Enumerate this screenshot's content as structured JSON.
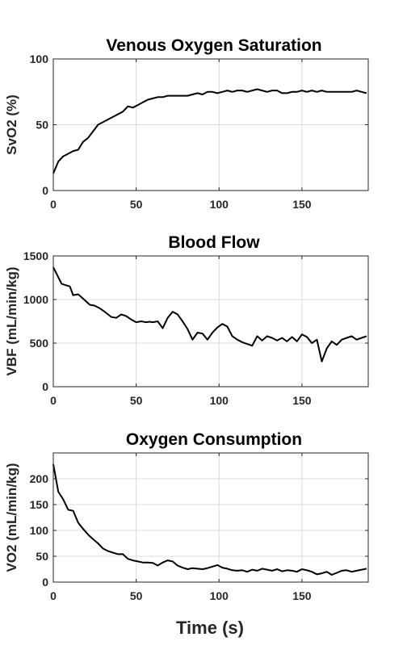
{
  "figure": {
    "xlabel": "Time (s)"
  },
  "chart_data": [
    {
      "type": "line",
      "title": "Venous Oxygen Saturation",
      "ylabel": "SvO2 (%)",
      "xlabel": "",
      "xlim": [
        0,
        190
      ],
      "ylim": [
        0,
        100
      ],
      "xticks": [
        0,
        50,
        100,
        150
      ],
      "yticks": [
        0,
        50,
        100
      ],
      "grid": true,
      "line_color": "#000000",
      "x": [
        0,
        3,
        6,
        9,
        12,
        15,
        18,
        21,
        24,
        27,
        30,
        33,
        36,
        39,
        42,
        45,
        48,
        51,
        54,
        57,
        60,
        63,
        66,
        69,
        72,
        75,
        78,
        81,
        84,
        87,
        90,
        93,
        96,
        99,
        102,
        105,
        108,
        111,
        114,
        117,
        120,
        123,
        126,
        129,
        132,
        135,
        138,
        141,
        144,
        147,
        150,
        153,
        156,
        159,
        162,
        165,
        168,
        171,
        174,
        177,
        180,
        183,
        186,
        189
      ],
      "y": [
        13,
        22,
        26,
        28,
        30,
        31,
        37,
        40,
        45,
        50,
        52,
        54,
        56,
        58,
        60,
        64,
        63,
        65,
        67,
        69,
        70,
        71,
        71,
        72,
        72,
        72,
        72,
        72,
        73,
        74,
        73,
        75,
        75,
        74,
        75,
        76,
        75,
        76,
        76,
        75,
        76,
        77,
        76,
        75,
        76,
        76,
        74,
        74,
        75,
        75,
        76,
        75,
        76,
        75,
        76,
        75,
        75,
        75,
        75,
        75,
        75,
        76,
        75,
        74
      ]
    },
    {
      "type": "line",
      "title": "Blood Flow",
      "ylabel": "VBF (mL/min/kg)",
      "xlabel": "",
      "xlim": [
        0,
        190
      ],
      "ylim": [
        0,
        1500
      ],
      "xticks": [
        0,
        50,
        100,
        150
      ],
      "yticks": [
        0,
        500,
        1000,
        1500
      ],
      "grid": true,
      "line_color": "#000000",
      "x": [
        0,
        5,
        10,
        12,
        15,
        18,
        22,
        25,
        28,
        31,
        35,
        38,
        41,
        44,
        47,
        50,
        53,
        56,
        58,
        60,
        63,
        66,
        69,
        72,
        75,
        78,
        81,
        84,
        87,
        90,
        93,
        96,
        99,
        102,
        105,
        108,
        111,
        114,
        117,
        120,
        123,
        126,
        129,
        132,
        135,
        138,
        141,
        144,
        147,
        150,
        153,
        156,
        159,
        162,
        165,
        168,
        171,
        174,
        177,
        180,
        183,
        186,
        189
      ],
      "y": [
        1370,
        1180,
        1150,
        1050,
        1060,
        1010,
        940,
        930,
        900,
        860,
        800,
        790,
        830,
        810,
        770,
        740,
        750,
        740,
        745,
        740,
        750,
        670,
        790,
        860,
        830,
        750,
        660,
        540,
        620,
        610,
        540,
        620,
        680,
        720,
        690,
        580,
        540,
        510,
        490,
        470,
        580,
        530,
        580,
        560,
        530,
        560,
        520,
        570,
        520,
        600,
        570,
        500,
        540,
        290,
        440,
        520,
        480,
        540,
        560,
        580,
        540,
        560,
        580
      ]
    },
    {
      "type": "line",
      "title": "Oxygen Consumption",
      "ylabel": "VO2 (mL/min/kg)",
      "xlabel": "Time (s)",
      "xlim": [
        0,
        190
      ],
      "ylim": [
        0,
        250
      ],
      "xticks": [
        0,
        50,
        100,
        150
      ],
      "yticks": [
        0,
        50,
        100,
        150,
        200
      ],
      "grid": true,
      "line_color": "#000000",
      "x": [
        0,
        3,
        6,
        9,
        12,
        15,
        18,
        21,
        24,
        27,
        30,
        33,
        36,
        39,
        42,
        45,
        48,
        51,
        54,
        57,
        60,
        63,
        66,
        69,
        72,
        75,
        78,
        81,
        84,
        87,
        90,
        93,
        96,
        99,
        102,
        105,
        108,
        111,
        114,
        117,
        120,
        123,
        126,
        129,
        132,
        135,
        138,
        141,
        144,
        147,
        150,
        153,
        156,
        159,
        162,
        165,
        168,
        171,
        174,
        177,
        180,
        183,
        186,
        189
      ],
      "y": [
        228,
        175,
        160,
        140,
        138,
        115,
        103,
        92,
        83,
        75,
        65,
        60,
        57,
        54,
        54,
        45,
        42,
        40,
        38,
        38,
        37,
        32,
        38,
        42,
        40,
        32,
        28,
        25,
        27,
        26,
        25,
        27,
        30,
        33,
        28,
        26,
        23,
        22,
        23,
        20,
        24,
        22,
        26,
        24,
        22,
        25,
        21,
        23,
        22,
        20,
        25,
        23,
        20,
        15,
        17,
        20,
        14,
        18,
        22,
        23,
        20,
        22,
        24,
        26
      ]
    }
  ]
}
